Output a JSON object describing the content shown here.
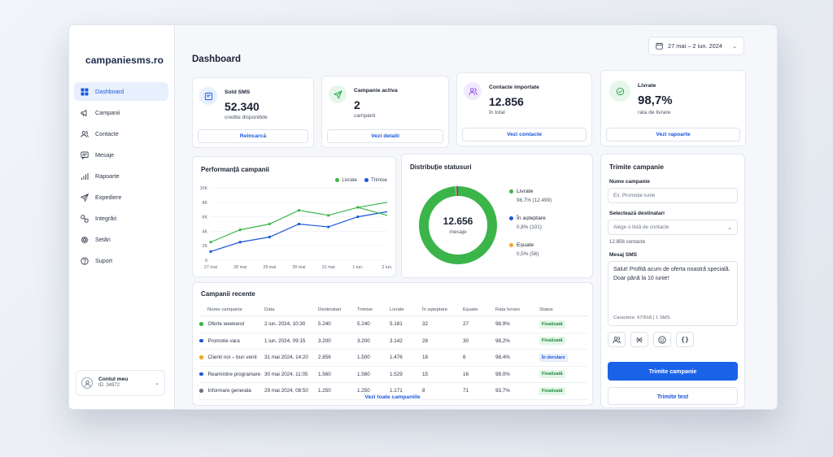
{
  "app": {
    "logo": "campaniesms.ro"
  },
  "sidebar": {
    "items": [
      {
        "label": "Dashboard",
        "icon": "grid-icon",
        "active": true
      },
      {
        "label": "Campanii",
        "icon": "megaphone-icon"
      },
      {
        "label": "Contacte",
        "icon": "users-icon"
      },
      {
        "label": "Mesaje",
        "icon": "message-icon"
      },
      {
        "label": "Rapoarte",
        "icon": "bar-chart-icon"
      },
      {
        "label": "Expediere",
        "icon": "send-icon"
      },
      {
        "label": "Integrări",
        "icon": "link-icon"
      },
      {
        "label": "Setări",
        "icon": "gear-icon"
      },
      {
        "label": "Suport",
        "icon": "help-icon"
      }
    ],
    "account": {
      "name": "Contul meu",
      "id": "ID: 34872"
    }
  },
  "header": {
    "title": "Dashboard",
    "date_range": "27 mai – 2 iun. 2024"
  },
  "stats": [
    {
      "label": "Sold SMS",
      "value": "52.340",
      "sub": "credite disponibile",
      "button": "Reîncarcă",
      "icon": "card-icon",
      "color": "#1a56db"
    },
    {
      "label": "Campanie activa",
      "value": "2",
      "sub": "campanii",
      "button": "Vezi detalii",
      "icon": "send-icon",
      "color": "#22a447"
    },
    {
      "label": "Contacte importate",
      "value": "12.856",
      "sub": "în total",
      "button": "Vezi contacte",
      "icon": "users-icon",
      "color": "#7c3aed"
    },
    {
      "label": "Livrate",
      "value": "98,7%",
      "sub": "rata de livrare",
      "button": "Vezi rapoarte",
      "icon": "check-circle-icon",
      "color": "#22a447"
    }
  ],
  "performance": {
    "title": "Performanță campanii",
    "chart_data": {
      "type": "line",
      "categories": [
        "27 mai",
        "28 mai",
        "29 mai",
        "30 mai",
        "31 mai",
        "1 iun.",
        "2 iun."
      ],
      "series": [
        {
          "name": "Livrate",
          "color": "#3bb54a",
          "values": [
            2500,
            4200,
            5000,
            6900,
            6200,
            7300,
            8000
          ]
        },
        {
          "name": "Trimise",
          "color": "#1a56db",
          "values": [
            1200,
            2500,
            3200,
            5000,
            4600,
            6000,
            6700
          ]
        }
      ],
      "extra_points": {
        "Livrate_end": 6200,
        "Trimise_end_dip": 6500
      },
      "yticks": [
        "0",
        "2K",
        "4K",
        "6K",
        "8K",
        "10K"
      ],
      "ylim": [
        0,
        10000
      ]
    }
  },
  "distribution": {
    "title": "Distribuție statusuri",
    "center_value": "12.656",
    "center_label": "mesaje",
    "chart_data": {
      "type": "pie",
      "slices": [
        {
          "name": "Livrate",
          "value": 98.7,
          "detail": "98,7% (12.499)",
          "color": "#3bb54a"
        },
        {
          "name": "În așteptare",
          "value": 0.8,
          "detail": "0,8% (101)",
          "color": "#1a56db"
        },
        {
          "name": "Eșuate",
          "value": 0.5,
          "detail": "0,5% (56)",
          "color": "#f4a623"
        }
      ]
    }
  },
  "recent": {
    "title": "Campanii recente",
    "columns": [
      "Nume campanie",
      "Data",
      "Destinatari",
      "Trimise",
      "Livrate",
      "În așteptare",
      "Eșuate",
      "Rata livrare",
      "Status"
    ],
    "rows": [
      {
        "name": "Oferte weekend",
        "dot": "#3bb54a",
        "date": "2 iun. 2024, 10:30",
        "dest": "5.240",
        "sent": "5.240",
        "deliv": "5.181",
        "pending": "32",
        "failed": "27",
        "rate": "98,9%",
        "status": "Finalizată",
        "kind": "done"
      },
      {
        "name": "Promotie vara",
        "dot": "#1a56db",
        "date": "1 iun. 2024, 09:15",
        "dest": "3.200",
        "sent": "3.200",
        "deliv": "3.142",
        "pending": "28",
        "failed": "30",
        "rate": "98,2%",
        "status": "Finalizată",
        "kind": "done"
      },
      {
        "name": "Clienti noi – bun venit",
        "dot": "#f4a623",
        "date": "31 mai 2024, 14:20",
        "dest": "2.856",
        "sent": "1.500",
        "deliv": "1.476",
        "pending": "18",
        "failed": "6",
        "rate": "98,4%",
        "status": "În derulare",
        "kind": "prog"
      },
      {
        "name": "Reamintire programare",
        "dot": "#1a56db",
        "date": "30 mai 2024, 11:05",
        "dest": "1.560",
        "sent": "1.560",
        "deliv": "1.529",
        "pending": "15",
        "failed": "16",
        "rate": "98,0%",
        "status": "Finalizată",
        "kind": "done"
      },
      {
        "name": "Informare generala",
        "dot": "#6b7485",
        "date": "29 mai 2024, 08:50",
        "dest": "1.250",
        "sent": "1.250",
        "deliv": "1.171",
        "pending": "8",
        "failed": "71",
        "rate": "93,7%",
        "status": "Finalizată",
        "kind": "done"
      }
    ],
    "view_all": "Vezi toate campaniile"
  },
  "send_form": {
    "title": "Trimite campanie",
    "name_label": "Nume campanie",
    "name_placeholder": "Ex: Promoție iunie",
    "dest_label": "Selectează destinatari",
    "dest_placeholder": "Alege o listă de contacte",
    "dest_count": "12.856 contacte",
    "msg_label": "Mesaj SMS",
    "msg_text": "Salut! Profită acum de oferta noastră specială. Doar până la 10 iunie!",
    "msg_counter": "Caractere: 67/918  |  1 SMS",
    "send_button": "Trimite campanie",
    "test_button": "Trimite test"
  }
}
